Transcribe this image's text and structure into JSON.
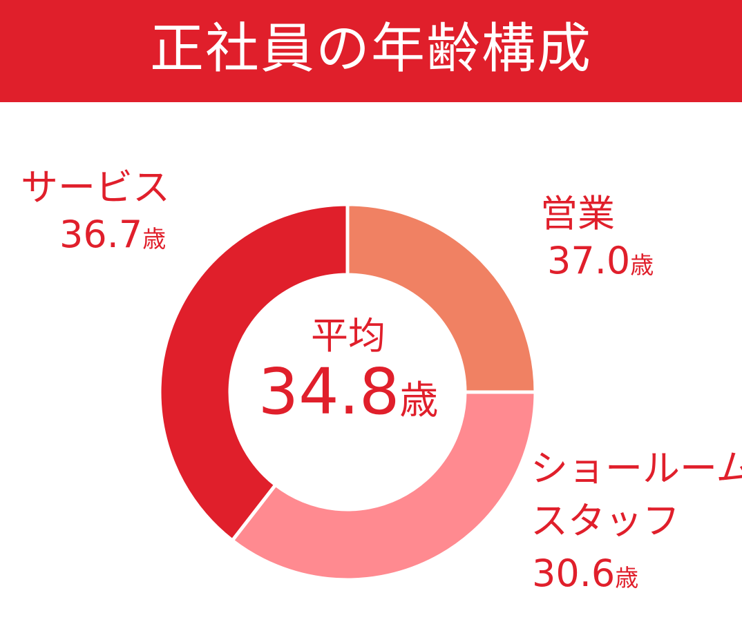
{
  "header": {
    "title": "正社員の年齢構成"
  },
  "center": {
    "title": "平均",
    "value": "34.8",
    "unit": "歳"
  },
  "colors": {
    "header_bg": "#e01f2b",
    "text": "#e01f2b",
    "divider": "#ffffff"
  },
  "chart_data": {
    "type": "pie",
    "title": "正社員の年齢構成",
    "slices": [
      {
        "name": "営業",
        "label": "営業",
        "value_text": "37.0",
        "unit": "歳",
        "fraction": 0.25,
        "color": "#f08163"
      },
      {
        "name": "ショールームスタッフ",
        "label_line1": "ショールーム",
        "label_line2": "スタッフ",
        "value_text": "30.6",
        "unit": "歳",
        "fraction": 0.355,
        "color": "#ff8a90"
      },
      {
        "name": "サービス",
        "label": "サービス",
        "value_text": "36.7",
        "unit": "歳",
        "fraction": 0.395,
        "color": "#e01f2b"
      }
    ],
    "center_label": "平均",
    "center_value": "34.8",
    "center_unit": "歳"
  }
}
